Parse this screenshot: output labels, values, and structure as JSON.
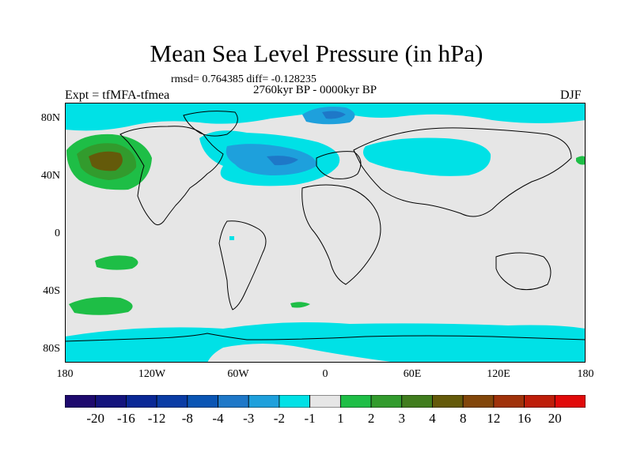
{
  "title": "Mean Sea Level Pressure (in hPa)",
  "stats": "rmsd= 0.764385 diff= -0.128235",
  "period": "2760kyr BP - 0000kyr BP",
  "experiment": "Expt = tfMFA-tfmea",
  "season": "DJF",
  "lat_labels": [
    "80N",
    "40N",
    "0",
    "40S",
    "80S"
  ],
  "lon_labels": [
    "180",
    "120W",
    "60W",
    "0",
    "60E",
    "120E",
    "180"
  ],
  "colorbar": {
    "labels": [
      "-20",
      "-16",
      "-12",
      "-8",
      "-4",
      "-3",
      "-2",
      "-1",
      "1",
      "2",
      "3",
      "4",
      "8",
      "12",
      "16",
      "20"
    ],
    "colors": [
      "#1e0a6e",
      "#14147d",
      "#0a2896",
      "#0a3ca5",
      "#0a55b4",
      "#1e78c8",
      "#1ea0dc",
      "#00e1e6",
      "#e6e6e6",
      "#1ebe46",
      "#329b2d",
      "#417d1e",
      "#645a0a",
      "#82460a",
      "#a0320a",
      "#be1e0a",
      "#e10a0a"
    ]
  },
  "colors": {
    "background_field": "#e6e6e6",
    "coast": "#000000"
  }
}
